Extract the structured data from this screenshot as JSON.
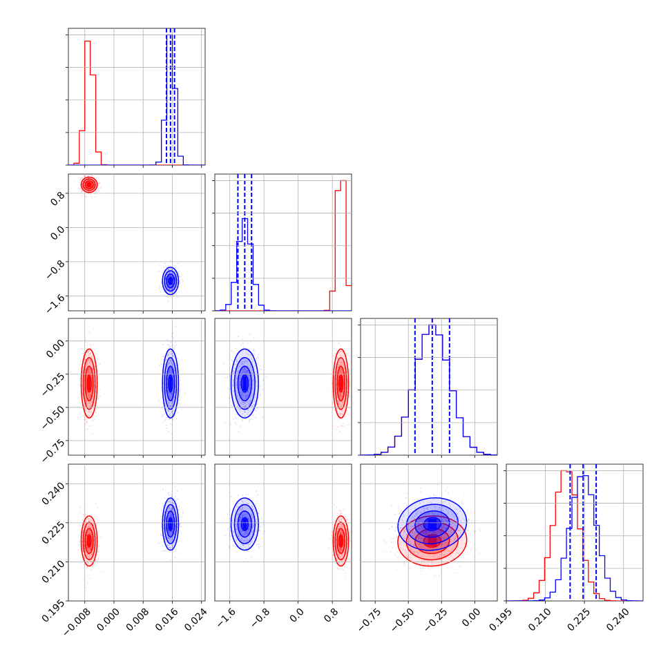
{
  "chart_data": {
    "type": "corner",
    "grid": true,
    "n_params": 4,
    "series": [
      {
        "name": "",
        "color": "#ff0000",
        "mean": [
          -0.0068,
          1.0,
          -0.32,
          0.218
        ],
        "std": [
          0.0011,
          0.09,
          0.13,
          0.0048
        ],
        "corr_pairs": [
          {
            "i": 3,
            "j": 2,
            "rho": 0.1
          }
        ],
        "quantile_lines": false
      },
      {
        "name": "",
        "color": "#0000ff",
        "mean": [
          0.0155,
          -1.25,
          -0.32,
          0.2245
        ],
        "std": [
          0.0011,
          0.16,
          0.13,
          0.005
        ],
        "corr_pairs": [
          {
            "i": 3,
            "j": 2,
            "rho": 0.2
          }
        ],
        "quantile_lines": true
      }
    ],
    "parameters": [
      {
        "range": [
          -0.0125,
          0.025
        ],
        "ticks": [
          -0.008,
          0.0,
          0.008,
          0.016,
          0.024
        ],
        "tick_labels": [
          "−0.008",
          "0.000",
          "0.008",
          "0.016",
          "0.024"
        ],
        "hist_bins": 25
      },
      {
        "range": [
          -1.95,
          1.25
        ],
        "ticks": [
          -1.6,
          -0.8,
          0.0,
          0.8
        ],
        "tick_labels": [
          "−1.6",
          "−0.8",
          "0.0",
          "0.8"
        ],
        "hist_bins": 25
      },
      {
        "range": [
          -0.86,
          0.17
        ],
        "ticks": [
          -0.75,
          -0.5,
          -0.25,
          0.0
        ],
        "tick_labels": [
          "−0.75",
          "−0.50",
          "−0.25",
          "0.00"
        ],
        "hist_bins": 20
      },
      {
        "range": [
          0.195,
          0.2475
        ],
        "ticks": [
          0.195,
          0.21,
          0.225,
          0.24
        ],
        "tick_labels": [
          "0.195",
          "0.210",
          "0.225",
          "0.240"
        ],
        "hist_bins": 25
      }
    ],
    "quantile_lines": {
      "series": 1,
      "quantiles": [
        0.16,
        0.5,
        0.84
      ],
      "style": "dashed"
    },
    "contour_levels": [
      0.5,
      1.0,
      1.5,
      2.0
    ]
  }
}
